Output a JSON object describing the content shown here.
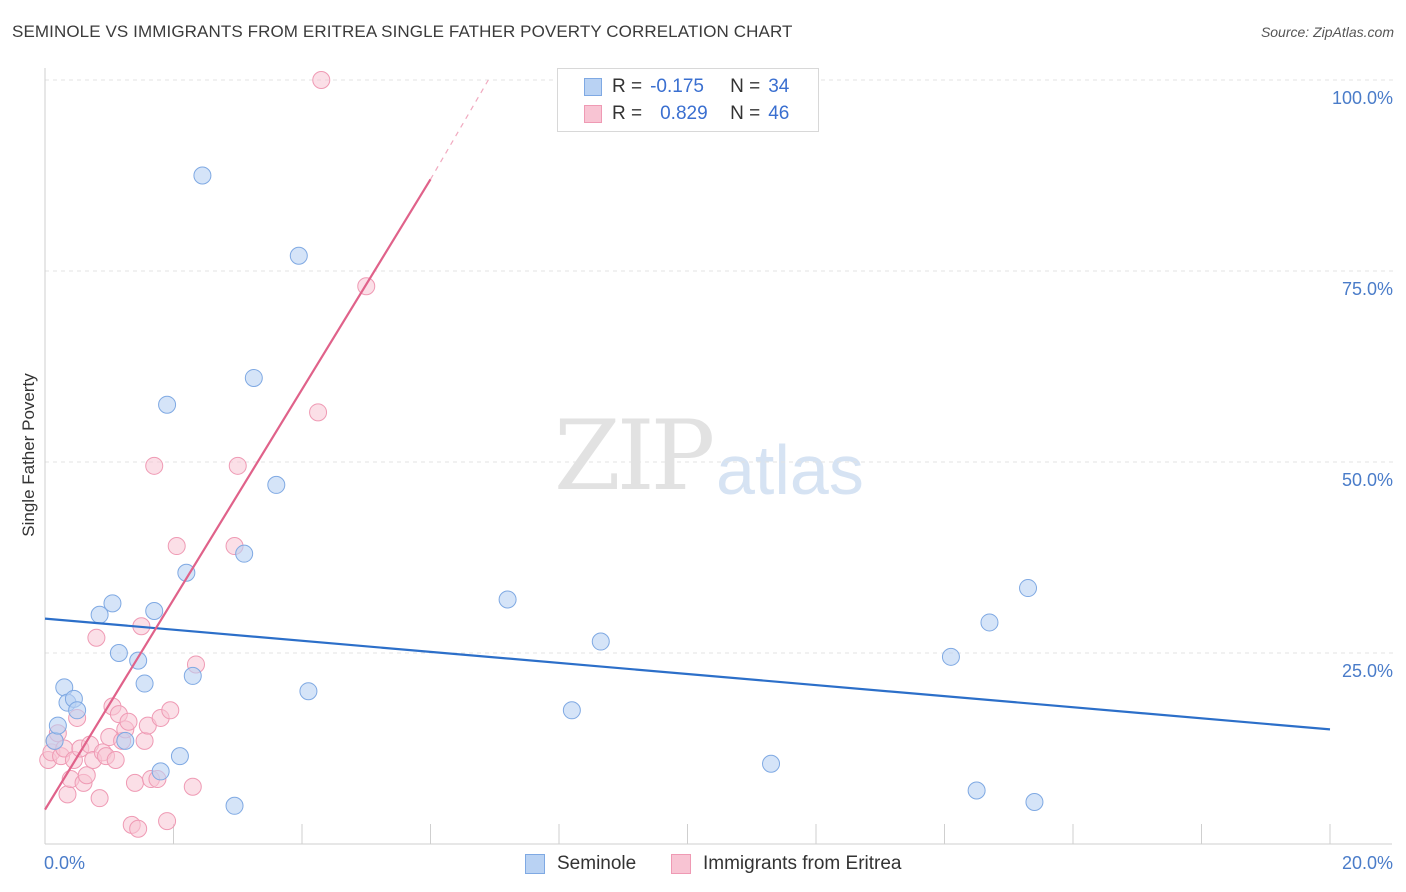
{
  "title": "SEMINOLE VS IMMIGRANTS FROM ERITREA SINGLE FATHER POVERTY CORRELATION CHART",
  "source": "Source: ZipAtlas.com",
  "watermark": {
    "left": "ZIP",
    "right": "atlas"
  },
  "legend": {
    "r_label": "R =",
    "n_label": "N =",
    "rows": [
      {
        "r": "-0.175",
        "n": "34"
      },
      {
        "r": "0.829",
        "n": "46"
      }
    ]
  },
  "chart_data": {
    "type": "scatter",
    "title": "SEMINOLE VS IMMIGRANTS FROM ERITREA SINGLE FATHER POVERTY CORRELATION CHART",
    "xlabel": "",
    "ylabel": "Single Father Poverty",
    "xlim": [
      0,
      20
    ],
    "ylim": [
      0,
      100
    ],
    "x_tick_labels": [
      "0.0%",
      "20.0%"
    ],
    "y_tick_labels": [
      "25.0%",
      "50.0%",
      "75.0%",
      "100.0%"
    ],
    "y_ticks": [
      25,
      50,
      75,
      100
    ],
    "grid": true,
    "legend_position": "top-center",
    "colors": {
      "seminole_fill": "#b9d2f3",
      "seminole_stroke": "#7fa9e3",
      "seminole_line": "#2c6fc9",
      "eritrea_fill": "#f8c4d3",
      "eritrea_stroke": "#ef9ab4",
      "eritrea_line": "#e0628a",
      "axis_text": "#4a7cc9"
    },
    "series": [
      {
        "name": "Seminole",
        "r": -0.175,
        "n": 34,
        "trend": {
          "x0": 0,
          "y0": 29.5,
          "x1": 20,
          "y1": 15.0
        },
        "points": [
          [
            0.15,
            13.5
          ],
          [
            0.2,
            15.5
          ],
          [
            0.3,
            20.5
          ],
          [
            0.35,
            18.5
          ],
          [
            0.45,
            19.0
          ],
          [
            0.5,
            17.5
          ],
          [
            0.85,
            30.0
          ],
          [
            1.05,
            31.5
          ],
          [
            1.15,
            25.0
          ],
          [
            1.25,
            13.5
          ],
          [
            1.45,
            24.0
          ],
          [
            1.55,
            21.0
          ],
          [
            1.7,
            30.5
          ],
          [
            1.8,
            9.5
          ],
          [
            1.9,
            57.5
          ],
          [
            2.1,
            11.5
          ],
          [
            2.2,
            35.5
          ],
          [
            2.3,
            22.0
          ],
          [
            2.45,
            87.5
          ],
          [
            2.95,
            5.0
          ],
          [
            3.1,
            38.0
          ],
          [
            3.25,
            61.0
          ],
          [
            3.6,
            47.0
          ],
          [
            3.95,
            77.0
          ],
          [
            4.1,
            20.0
          ],
          [
            7.2,
            32.0
          ],
          [
            8.2,
            17.5
          ],
          [
            8.65,
            26.5
          ],
          [
            11.3,
            10.5
          ],
          [
            14.1,
            24.5
          ],
          [
            14.5,
            7.0
          ],
          [
            14.7,
            29.0
          ],
          [
            15.3,
            33.5
          ],
          [
            15.4,
            5.5
          ]
        ]
      },
      {
        "name": "Immigrants from Eritrea",
        "r": 0.829,
        "n": 46,
        "trend": {
          "x0": 0,
          "y0": 4.5,
          "x1": 6.0,
          "y1": 87.0
        },
        "trend_dashed_to": {
          "x": 6.9,
          "y": 100
        },
        "points": [
          [
            0.05,
            11.0
          ],
          [
            0.1,
            12.0
          ],
          [
            0.15,
            13.5
          ],
          [
            0.2,
            14.5
          ],
          [
            0.25,
            11.5
          ],
          [
            0.3,
            12.5
          ],
          [
            0.35,
            6.5
          ],
          [
            0.4,
            8.5
          ],
          [
            0.45,
            11.0
          ],
          [
            0.5,
            16.5
          ],
          [
            0.55,
            12.5
          ],
          [
            0.6,
            8.0
          ],
          [
            0.65,
            9.0
          ],
          [
            0.7,
            13.0
          ],
          [
            0.75,
            11.0
          ],
          [
            0.8,
            27.0
          ],
          [
            0.85,
            6.0
          ],
          [
            0.9,
            12.0
          ],
          [
            0.95,
            11.5
          ],
          [
            1.0,
            14.0
          ],
          [
            1.05,
            18.0
          ],
          [
            1.1,
            11.0
          ],
          [
            1.15,
            17.0
          ],
          [
            1.2,
            13.5
          ],
          [
            1.25,
            15.0
          ],
          [
            1.3,
            16.0
          ],
          [
            1.35,
            2.5
          ],
          [
            1.4,
            8.0
          ],
          [
            1.45,
            2.0
          ],
          [
            1.5,
            28.5
          ],
          [
            1.55,
            13.5
          ],
          [
            1.6,
            15.5
          ],
          [
            1.65,
            8.5
          ],
          [
            1.7,
            49.5
          ],
          [
            1.75,
            8.5
          ],
          [
            1.8,
            16.5
          ],
          [
            1.9,
            3.0
          ],
          [
            1.95,
            17.5
          ],
          [
            2.05,
            39.0
          ],
          [
            2.3,
            7.5
          ],
          [
            2.35,
            23.5
          ],
          [
            2.95,
            39.0
          ],
          [
            3.0,
            49.5
          ],
          [
            4.25,
            56.5
          ],
          [
            5.0,
            73.0
          ],
          [
            4.3,
            100.0
          ]
        ]
      }
    ]
  }
}
